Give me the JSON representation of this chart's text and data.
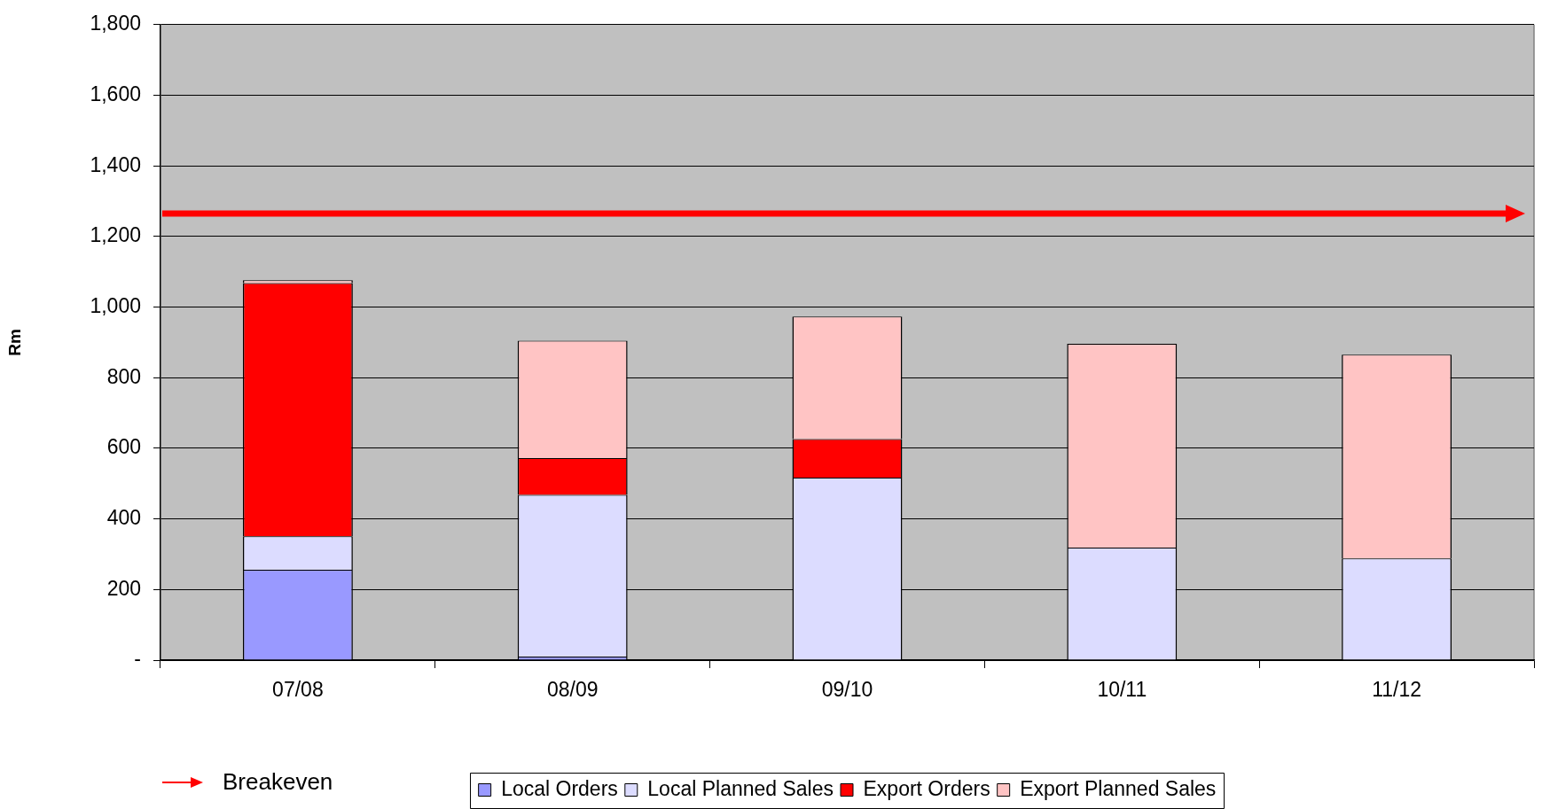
{
  "chart_data": {
    "type": "bar",
    "ylabel": "Rm",
    "categories": [
      "07/08",
      "08/09",
      "09/10",
      "10/11",
      "11/12"
    ],
    "series": [
      {
        "name": "Local Orders",
        "color": "#9999ff",
        "values": [
          256,
          10,
          0,
          0,
          0
        ]
      },
      {
        "name": "Local Planned Sales",
        "color": "#dcdcff",
        "values": [
          95,
          458,
          517,
          319,
          288
        ]
      },
      {
        "name": "Export Orders",
        "color": "#ff0000",
        "values": [
          717,
          104,
          109,
          0,
          0
        ]
      },
      {
        "name": "Export Planned Sales",
        "color": "#ffc4c4",
        "values": [
          8,
          333,
          347,
          577,
          577
        ]
      }
    ],
    "stacked": true,
    "ylim": [
      0,
      1800
    ],
    "yticks": [
      {
        "value": 0,
        "label": "-"
      },
      200,
      400,
      600,
      800,
      {
        "value": 1000,
        "label": "1,000"
      },
      {
        "value": 1200,
        "label": "1,200"
      },
      {
        "value": 1400,
        "label": "1,400"
      },
      {
        "value": 1600,
        "label": "1,600"
      },
      {
        "value": 1800,
        "label": "1,800"
      }
    ],
    "grid": "y",
    "legend": "bottom",
    "ref_lines": [
      {
        "axis": "y",
        "value": 1265,
        "label": "Breakeven",
        "color": "#ff0000"
      }
    ]
  }
}
